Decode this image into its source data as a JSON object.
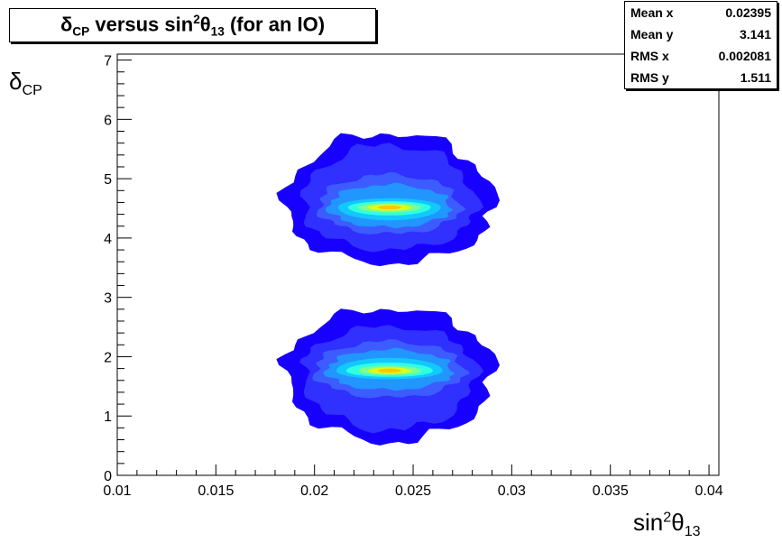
{
  "title": {
    "delta": "δ",
    "delta_sub": "CP",
    "mid": " versus sin",
    "sup": "2",
    "theta": "θ",
    "theta_sub": "13",
    "tail": " (for an IO)"
  },
  "stats": [
    {
      "label": "Mean x",
      "value": "0.02395"
    },
    {
      "label": "Mean y",
      "value": "3.141"
    },
    {
      "label": "RMS x",
      "value": "0.002081"
    },
    {
      "label": "RMS y",
      "value": "1.511"
    }
  ],
  "chart_data": {
    "type": "heatmap",
    "xlabel": {
      "base": "sin",
      "sup": "2",
      "theta": "θ",
      "sub": "13"
    },
    "ylabel": {
      "base": "δ",
      "sub": "CP"
    },
    "xlim": [
      0.01,
      0.0405
    ],
    "ylim": [
      0,
      7.1
    ],
    "x_ticks": [
      "0.01",
      "0.015",
      "0.02",
      "0.025",
      "0.03",
      "0.035",
      "0.04"
    ],
    "x_tick_values": [
      0.01,
      0.015,
      0.02,
      0.025,
      0.03,
      0.035,
      0.04
    ],
    "y_ticks": [
      "0",
      "1",
      "2",
      "3",
      "4",
      "5",
      "6",
      "7"
    ],
    "y_tick_values": [
      0,
      1,
      2,
      3,
      4,
      5,
      6,
      7
    ],
    "palette": [
      "#1800ff",
      "#3030ff",
      "#3c5cff",
      "#2196ff",
      "#12c8ff",
      "#30ffe0",
      "#7cff90",
      "#d8ff20",
      "#ffc800",
      "#ff3000"
    ],
    "upper_lobe": {
      "center": [
        0.0238,
        4.52
      ],
      "levels": [
        {
          "rx": 0.0053,
          "ry_up": 1.25,
          "ry_down": 0.95
        },
        {
          "rx": 0.0044,
          "ry_up": 1.05,
          "ry_down": 0.72
        },
        {
          "rx": 0.0036,
          "ry_up": 0.55,
          "ry_down": 0.45
        },
        {
          "rx": 0.0031,
          "ry_up": 0.38,
          "ry_down": 0.34
        },
        {
          "rx": 0.0026,
          "ry_up": 0.15,
          "ry_down": 0.22
        },
        {
          "rx": 0.0021,
          "ry_up": 0.1,
          "ry_down": 0.14
        },
        {
          "rx": 0.0016,
          "ry_up": 0.07,
          "ry_down": 0.09
        },
        {
          "rx": 0.0011,
          "ry_up": 0.05,
          "ry_down": 0.06
        },
        {
          "rx": 0.0006,
          "ry_up": 0.03,
          "ry_down": 0.04
        }
      ]
    },
    "lower_lobe": {
      "center": [
        0.0238,
        1.76
      ],
      "levels": [
        {
          "rx": 0.0053,
          "ry_up": 1.05,
          "ry_down": 1.2
        },
        {
          "rx": 0.0044,
          "ry_up": 0.75,
          "ry_down": 1.0
        },
        {
          "rx": 0.0038,
          "ry_up": 0.5,
          "ry_down": 0.45
        },
        {
          "rx": 0.0032,
          "ry_up": 0.36,
          "ry_down": 0.32
        },
        {
          "rx": 0.0027,
          "ry_up": 0.22,
          "ry_down": 0.14
        },
        {
          "rx": 0.0022,
          "ry_up": 0.14,
          "ry_down": 0.1
        },
        {
          "rx": 0.0016,
          "ry_up": 0.09,
          "ry_down": 0.07
        },
        {
          "rx": 0.0011,
          "ry_up": 0.06,
          "ry_down": 0.05
        },
        {
          "rx": 0.0006,
          "ry_up": 0.04,
          "ry_down": 0.03
        }
      ]
    }
  }
}
